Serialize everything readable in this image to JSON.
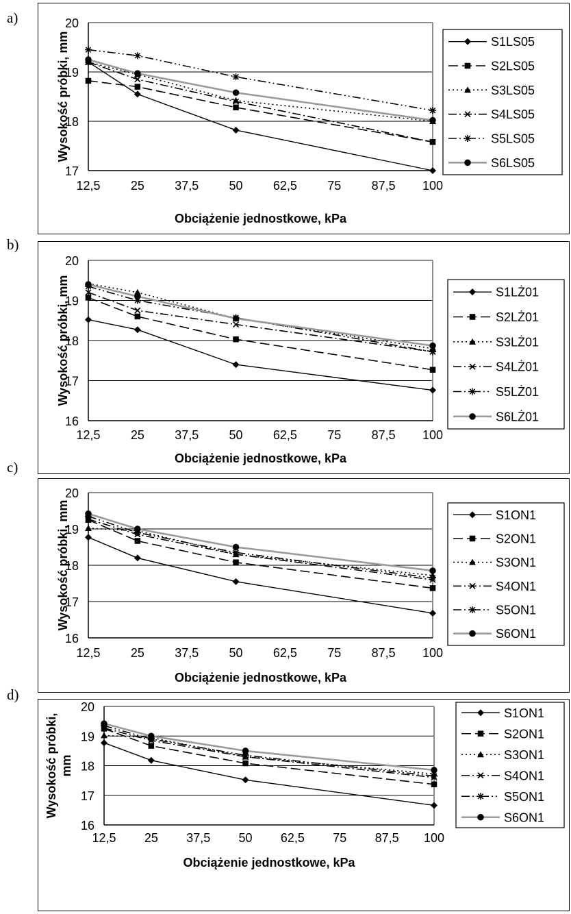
{
  "panel_letters": [
    "a)",
    "b)",
    "c)",
    "d)"
  ],
  "chart_data": [
    {
      "type": "line",
      "panel": "a)",
      "x": [
        12.5,
        25,
        50,
        100
      ],
      "xticks": [
        "12,5",
        "25",
        "37,5",
        "50",
        "62,5",
        "75",
        "87,5",
        "100"
      ],
      "xlim": [
        12.5,
        100
      ],
      "ylim": [
        17,
        20
      ],
      "yticks": [
        "17",
        "18",
        "19",
        "20"
      ],
      "xlabel": "Obciążenie jednostkowe, kPa",
      "ylabel": "Wysokość próbki, mm",
      "ylabel_lines": [
        "Wysokość próbki, mm"
      ],
      "grid": "horizontal",
      "legend": "right",
      "series": [
        {
          "name": "S1LS05",
          "values": [
            19.2,
            18.55,
            17.82,
            17.0
          ]
        },
        {
          "name": "S2LS05",
          "values": [
            18.82,
            18.7,
            18.28,
            17.58
          ]
        },
        {
          "name": "S3LS05",
          "values": [
            19.2,
            18.95,
            18.42,
            18.0
          ]
        },
        {
          "name": "S4LS05",
          "values": [
            19.2,
            18.85,
            18.4,
            17.58
          ]
        },
        {
          "name": "S5LS05",
          "values": [
            19.45,
            19.33,
            18.9,
            18.22
          ]
        },
        {
          "name": "S6LS05",
          "values": [
            19.25,
            18.97,
            18.58,
            18.02
          ]
        }
      ]
    },
    {
      "type": "line",
      "panel": "b)",
      "x": [
        12.5,
        25,
        50,
        100
      ],
      "xticks": [
        "12,5",
        "25",
        "37,5",
        "50",
        "62,5",
        "75",
        "87,5",
        "100"
      ],
      "xlim": [
        12.5,
        100
      ],
      "ylim": [
        16,
        20
      ],
      "yticks": [
        "16",
        "17",
        "18",
        "19",
        "20"
      ],
      "xlabel": "Obciążenie jednostkowe, kPa",
      "ylabel": "Wysokość próbki, mm",
      "ylabel_lines": [
        "Wysokość próbki, mm"
      ],
      "grid": "horizontal",
      "legend": "right",
      "series": [
        {
          "name": "S1LŻ01",
          "values": [
            18.52,
            18.27,
            17.4,
            16.76
          ]
        },
        {
          "name": "S2LŻ01",
          "values": [
            19.07,
            18.6,
            18.03,
            17.27
          ]
        },
        {
          "name": "S3LŻ01",
          "values": [
            19.42,
            19.2,
            18.55,
            17.8
          ]
        },
        {
          "name": "S4LŻ01",
          "values": [
            19.2,
            18.75,
            18.4,
            17.72
          ]
        },
        {
          "name": "S5LŻ01",
          "values": [
            19.35,
            19.0,
            18.57,
            17.72
          ]
        },
        {
          "name": "S6LŻ01",
          "values": [
            19.4,
            19.1,
            18.55,
            17.87
          ]
        }
      ]
    },
    {
      "type": "line",
      "panel": "c)",
      "x": [
        12.5,
        25,
        50,
        100
      ],
      "xticks": [
        "12,5",
        "25",
        "37,5",
        "50",
        "62,5",
        "75",
        "87,5",
        "100"
      ],
      "xlim": [
        12.5,
        100
      ],
      "ylim": [
        16,
        20
      ],
      "yticks": [
        "16",
        "17",
        "18",
        "19",
        "20"
      ],
      "xlabel": "Obciążenie jednostkowe, kPa",
      "ylabel": "Wysokość próbki, mm",
      "ylabel_lines": [
        "Wysokość próbki, mm"
      ],
      "grid": "horizontal",
      "legend": "right",
      "series": [
        {
          "name": "S1ON1",
          "values": [
            18.77,
            18.2,
            17.55,
            16.68
          ]
        },
        {
          "name": "S2ON1",
          "values": [
            19.25,
            18.67,
            18.08,
            17.37
          ]
        },
        {
          "name": "S3ON1",
          "values": [
            19.02,
            18.95,
            18.3,
            17.72
          ]
        },
        {
          "name": "S4ON1",
          "values": [
            19.27,
            18.85,
            18.3,
            17.6
          ]
        },
        {
          "name": "S5ON1",
          "values": [
            19.35,
            18.9,
            18.35,
            17.65
          ]
        },
        {
          "name": "S6ON1",
          "values": [
            19.42,
            19.0,
            18.5,
            17.85
          ]
        }
      ]
    },
    {
      "type": "line",
      "panel": "d)",
      "x": [
        12.5,
        25,
        50,
        100
      ],
      "xticks": [
        "12,5",
        "25",
        "37,5",
        "50",
        "62,5",
        "75",
        "87,5",
        "100"
      ],
      "xlim": [
        12.5,
        100
      ],
      "ylim": [
        16,
        20
      ],
      "yticks": [
        "16",
        "17",
        "18",
        "19",
        "20"
      ],
      "xlabel": "Obciążenie jednostkowe, kPa",
      "ylabel": "Wysokość próbki, mm",
      "ylabel_lines": [
        "Wysokość próbki,",
        "mm"
      ],
      "grid": "horizontal",
      "legend": "right",
      "series": [
        {
          "name": "S1ON1",
          "values": [
            18.77,
            18.18,
            17.52,
            16.66
          ]
        },
        {
          "name": "S2ON1",
          "values": [
            19.25,
            18.67,
            18.08,
            17.37
          ]
        },
        {
          "name": "S3ON1",
          "values": [
            19.02,
            18.95,
            18.3,
            17.72
          ]
        },
        {
          "name": "S4ON1",
          "values": [
            19.27,
            18.85,
            18.3,
            17.6
          ]
        },
        {
          "name": "S5ON1",
          "values": [
            19.35,
            18.9,
            18.35,
            17.65
          ]
        },
        {
          "name": "S6ON1",
          "values": [
            19.42,
            19.0,
            18.5,
            17.85
          ]
        }
      ]
    }
  ]
}
